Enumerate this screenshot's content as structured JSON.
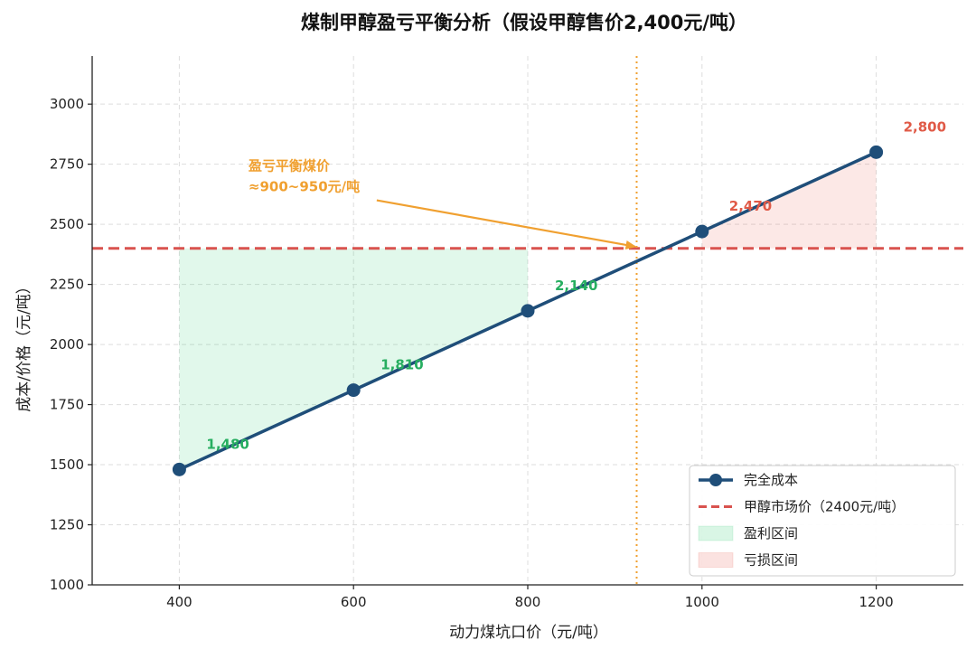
{
  "chart_data": {
    "type": "line",
    "title": "煤制甲醇盈亏平衡分析（假设甲醇售价2,400元/吨）",
    "xlabel": "动力煤坑口价（元/吨）",
    "ylabel": "成本/价格（元/吨）",
    "xlim": [
      300,
      1300
    ],
    "ylim": [
      1000,
      3200
    ],
    "x_ticks": [
      400,
      600,
      800,
      1000,
      1200
    ],
    "y_ticks": [
      1000,
      1250,
      1500,
      1750,
      2000,
      2250,
      2500,
      2750,
      3000
    ],
    "grid": true,
    "legend_position": "bottom-right",
    "series": [
      {
        "name": "完全成本",
        "x": [
          400,
          600,
          800,
          1000,
          1200
        ],
        "y": [
          1480,
          1810,
          2140,
          2470,
          2800
        ],
        "color": "#1f4e79"
      }
    ],
    "data_labels": [
      "1,480",
      "1,810",
      "2,140",
      "2,470",
      "2,800"
    ],
    "reference_line": {
      "name": "甲醇市场价（2400元/吨）",
      "y": 2400,
      "color": "#d9534f"
    },
    "breakeven_line": {
      "x": 925,
      "color": "#f0a030"
    },
    "profit_region": {
      "name": "盈利区间",
      "x_range": [
        400,
        800
      ],
      "color": "#2ecc71"
    },
    "loss_region": {
      "name": "亏损区间",
      "x_range": [
        1000,
        1200
      ],
      "color": "#e74c3c"
    },
    "annotation": {
      "line1": "盈亏平衡煤价",
      "line2": "≈900~950元/吨",
      "x": 720,
      "y": 2600,
      "arrow_to_x": 925,
      "arrow_to_y": 2400,
      "color": "#f0a030"
    },
    "colors": {
      "profit_label": "#27ae60",
      "loss_label": "#e05a47"
    }
  }
}
